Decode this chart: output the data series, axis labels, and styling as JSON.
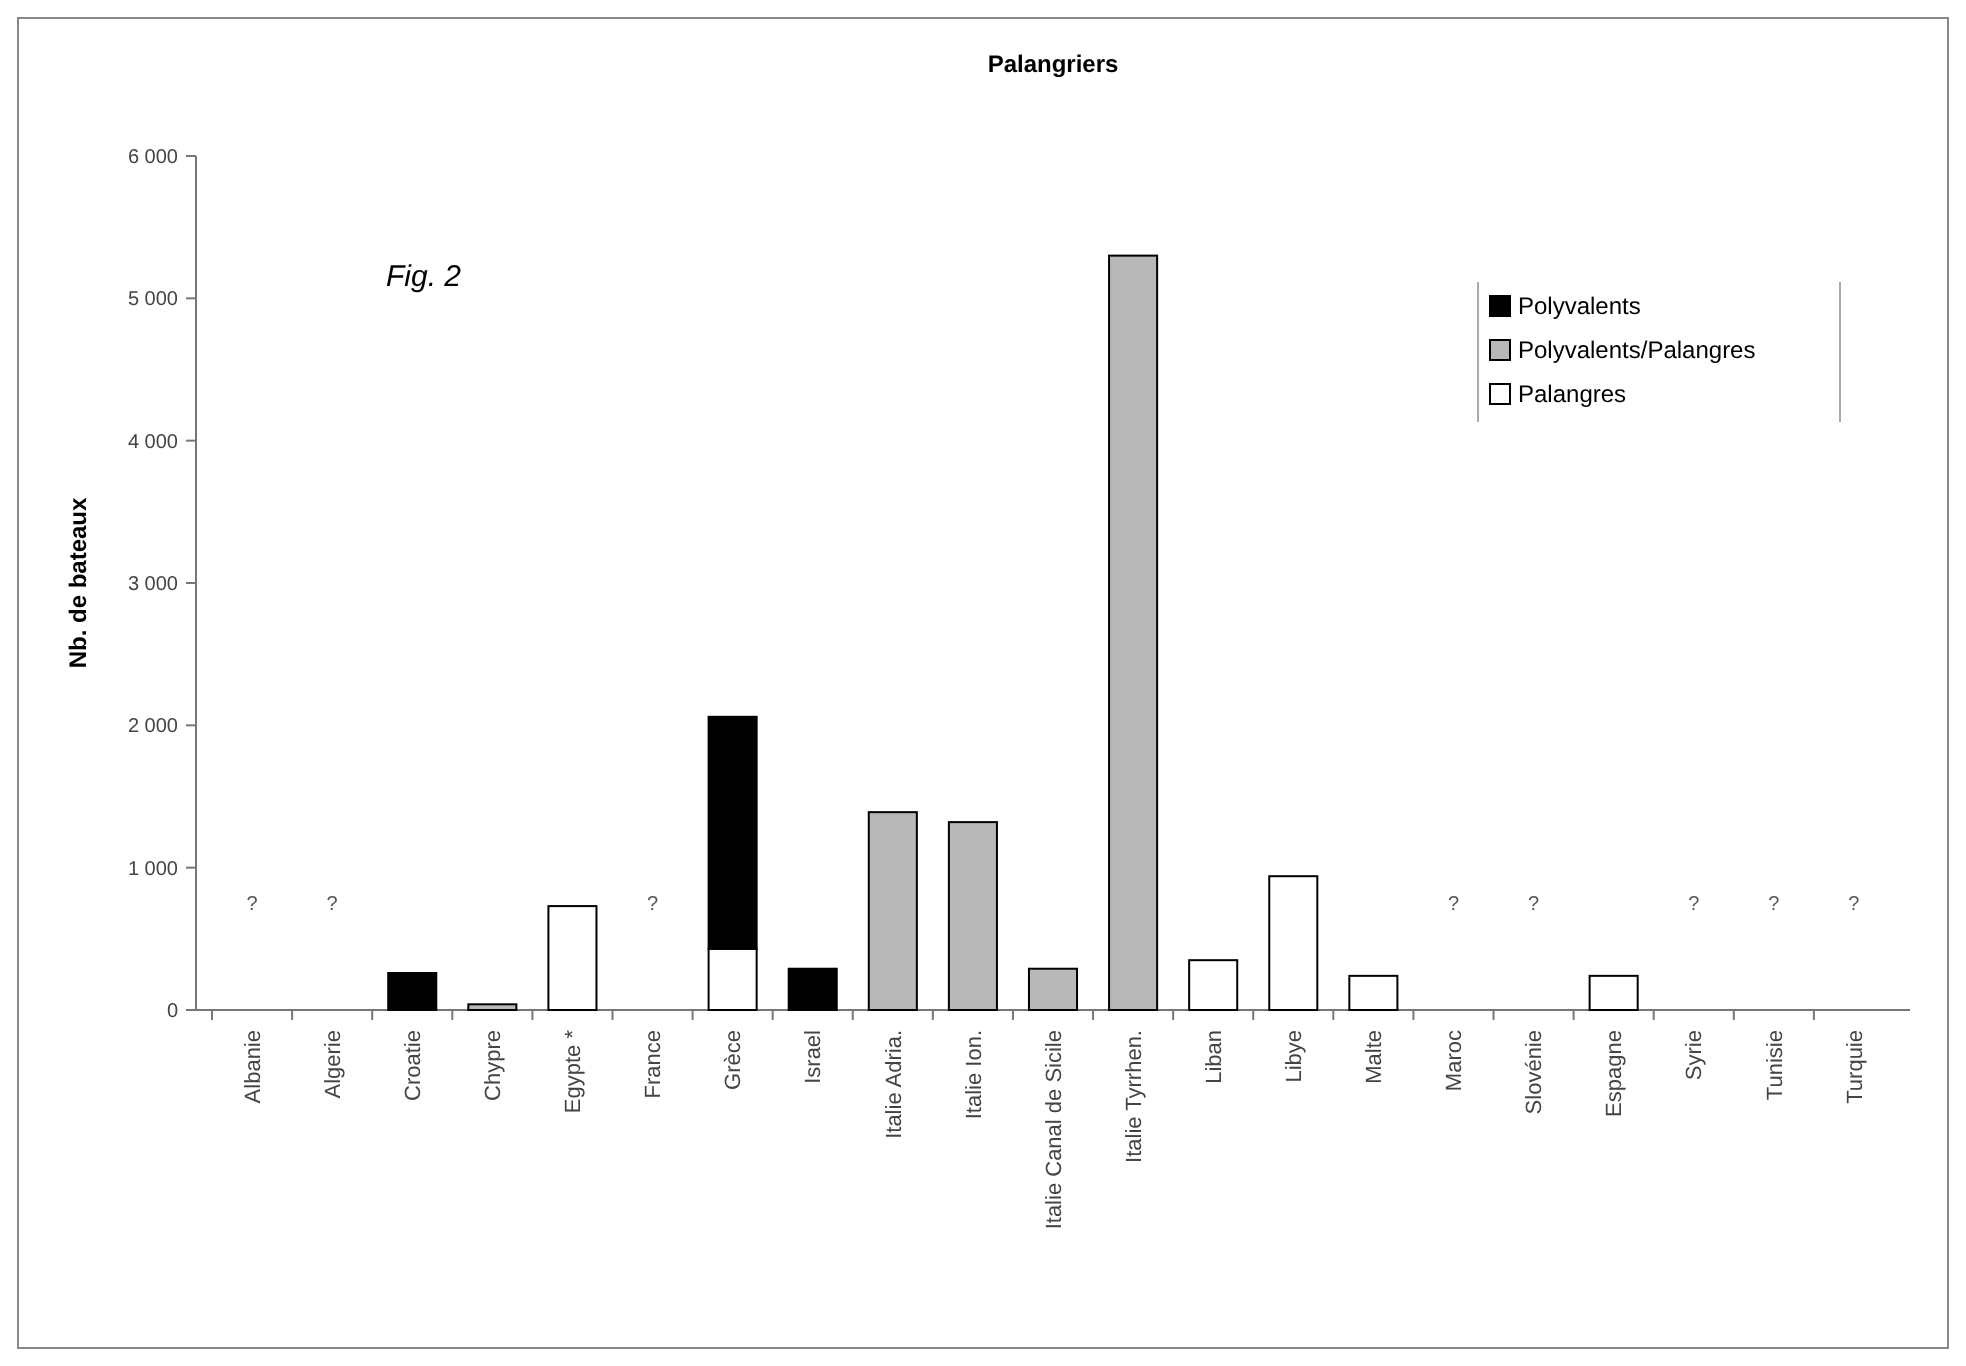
{
  "chart_data": {
    "type": "bar",
    "title": "Palangriers",
    "ylabel": "Nb. de bateaux",
    "stacked": true,
    "legend": "top right",
    "categories": [
      "Albanie",
      "Algerie",
      "Croatie",
      "Chypre",
      "Egypte *",
      "France",
      "Grèce",
      "Israel",
      "Italie Adria.",
      "Italie Ion.",
      "Italie Canal de Sicile",
      "Italie Tyrrhen.",
      "Liban",
      "Libye",
      "Malte",
      "Maroc",
      "Slovénie",
      "Espagne",
      "Syrie",
      "Tunisie",
      "Turquie"
    ],
    "series": [
      {
        "name": "Palangres",
        "color": "#ffffff",
        "values": [
          null,
          null,
          null,
          null,
          730,
          null,
          430,
          null,
          null,
          null,
          null,
          null,
          350,
          940,
          240,
          null,
          null,
          240,
          null,
          null,
          null
        ],
        "value_labels": [
          "?",
          "?",
          null,
          null,
          null,
          "?",
          null,
          null,
          null,
          null,
          null,
          null,
          null,
          null,
          null,
          "?",
          "?",
          null,
          "?",
          "?",
          "?"
        ]
      },
      {
        "name": "Polyvalents/Palangres",
        "color": "#b8b8b8",
        "values": [
          null,
          null,
          null,
          40,
          null,
          null,
          null,
          null,
          1390,
          1320,
          290,
          5300,
          null,
          null,
          null,
          null,
          null,
          null,
          null,
          null,
          null
        ]
      },
      {
        "name": "Polyvalents",
        "color": "#000000",
        "values": [
          null,
          null,
          260,
          null,
          null,
          null,
          1630,
          290,
          null,
          null,
          null,
          null,
          null,
          null,
          null,
          null,
          null,
          null,
          null,
          null,
          null
        ]
      }
    ],
    "ylim": [
      0,
      6000
    ],
    "yticks": [
      {
        "value": 0,
        "label": "0"
      },
      {
        "value": 1000,
        "label": "1 000"
      },
      {
        "value": 2000,
        "label": "2 000"
      },
      {
        "value": 3000,
        "label": "3 000"
      },
      {
        "value": 4000,
        "label": "4 000"
      },
      {
        "value": 5000,
        "label": "5 000"
      },
      {
        "value": 6000,
        "label": "6 000"
      }
    ],
    "annotations": [
      "Fig. 2"
    ]
  }
}
